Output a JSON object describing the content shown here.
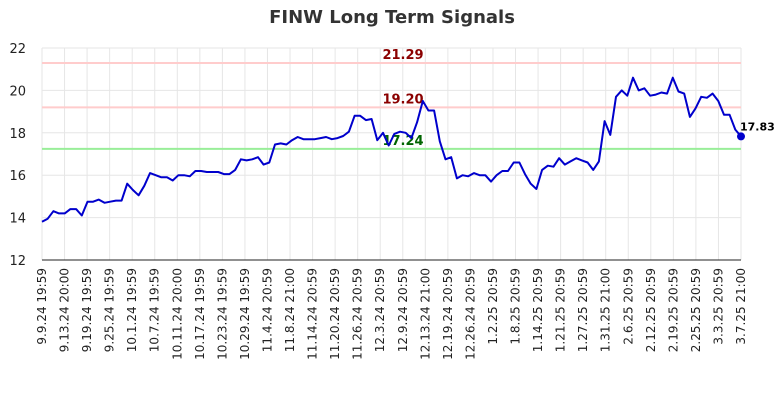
{
  "chart_data": {
    "type": "line",
    "title": "FINW Long Term Signals",
    "xlabel": "",
    "ylabel": "",
    "ylim": [
      12,
      22
    ],
    "yticks": [
      12,
      14,
      16,
      18,
      20,
      22
    ],
    "grid": true,
    "line_color": "#0000cc",
    "x_tick_labels": [
      "9.9.24 19:59",
      "9.13.24 20:00",
      "9.19.24 19:59",
      "9.25.24 19:59",
      "10.1.24 19:59",
      "10.7.24 19:59",
      "10.11.24 20:00",
      "10.17.24 19:59",
      "10.23.24 19:59",
      "10.29.24 19:59",
      "11.4.24 20:59",
      "11.8.24 21:00",
      "11.14.24 20:59",
      "11.20.24 20:59",
      "11.26.24 20:59",
      "12.3.24 20:59",
      "12.9.24 20:59",
      "12.13.24 21:00",
      "12.19.24 20:59",
      "12.26.24 20:59",
      "1.2.25 20:59",
      "1.8.25 20:59",
      "1.14.25 20:59",
      "1.21.25 20:59",
      "1.27.25 20:59",
      "1.31.25 21:00",
      "2.6.25 20:59",
      "2.12.25 20:59",
      "2.19.25 20:59",
      "2.25.25 20:59",
      "3.3.25 20:59",
      "3.7.25 21:00"
    ],
    "series": [
      {
        "values": [
          13.8,
          13.95,
          14.3,
          14.2,
          14.2,
          14.4,
          14.4,
          14.1,
          14.75,
          14.75,
          14.85,
          14.7,
          14.75,
          14.8,
          14.8,
          15.6,
          15.3,
          15.05,
          15.5,
          16.1,
          16.0,
          15.9,
          15.9,
          15.75,
          16.0,
          16.0,
          15.95,
          16.2,
          16.2,
          16.15,
          16.15,
          16.15,
          16.05,
          16.05,
          16.25,
          16.75,
          16.7,
          16.75,
          16.85,
          16.5,
          16.6,
          17.45,
          17.5,
          17.45,
          17.65,
          17.8,
          17.7,
          17.7,
          17.7,
          17.75,
          17.8,
          17.7,
          17.75,
          17.85,
          18.05,
          18.8,
          18.8,
          18.6,
          18.65,
          17.65,
          18.0,
          17.4,
          17.95,
          18.05,
          18.0,
          17.75,
          18.5,
          19.5,
          19.05,
          19.05,
          17.6,
          16.75,
          16.85,
          15.85,
          16.0,
          15.95,
          16.1,
          16.0,
          16.0,
          15.7,
          16.0,
          16.2,
          16.2,
          16.6,
          16.6,
          16.05,
          15.6,
          15.35,
          16.25,
          16.45,
          16.4,
          16.8,
          16.5,
          16.65,
          16.8,
          16.7,
          16.6,
          16.25,
          16.65,
          18.55,
          17.9,
          19.7,
          20.0,
          19.75,
          20.6,
          20.0,
          20.1,
          19.75,
          19.8,
          19.9,
          19.85,
          20.6,
          19.95,
          19.85,
          18.75,
          19.15,
          19.7,
          19.65,
          19.85,
          19.5,
          18.85,
          18.85,
          18.15,
          17.83
        ]
      }
    ],
    "reference_lines": [
      {
        "value": 21.29,
        "label": "21.29",
        "line_color": "#ffcccc",
        "label_color": "#8b0000"
      },
      {
        "value": 19.2,
        "label": "19.20",
        "line_color": "#ffcccc",
        "label_color": "#8b0000"
      },
      {
        "value": 17.24,
        "label": "17.24",
        "line_color": "#99ee99",
        "label_color": "#006400"
      }
    ],
    "last_value_label": "17.83"
  }
}
